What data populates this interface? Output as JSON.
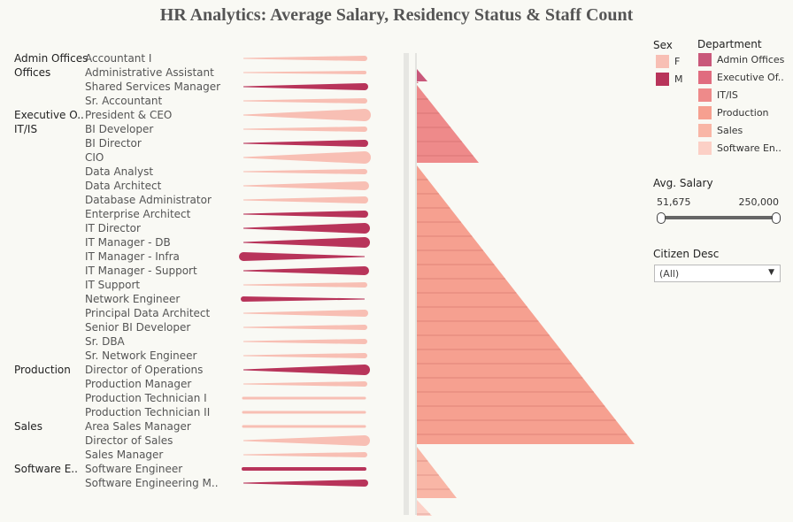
{
  "title": "HR Analytics: Average Salary, Residency Status & Staff Count",
  "legend_sex": {
    "title": "Sex",
    "items": [
      {
        "label": "F",
        "color": "#f8bfb4"
      },
      {
        "label": "M",
        "color": "#b8345a"
      }
    ]
  },
  "legend_department": {
    "title": "Department",
    "items": [
      {
        "label": "Admin Offices",
        "color": "#c9587a"
      },
      {
        "label": "Executive Of..",
        "color": "#e06c7f"
      },
      {
        "label": "IT/IS",
        "color": "#ee8a8a"
      },
      {
        "label": "Production",
        "color": "#f6a090"
      },
      {
        "label": "Sales",
        "color": "#f9b6a6"
      },
      {
        "label": "Software En..",
        "color": "#fcd0c6"
      }
    ]
  },
  "salary_filter": {
    "title": "Avg. Salary",
    "min_label": "51,675",
    "max_label": "250,000"
  },
  "citizen_filter": {
    "title": "Citizen Desc",
    "value": "(All)"
  },
  "chart_data": {
    "type": "bar",
    "description_of_panels": [
      "salary shape per position by sex",
      "staff count per department (triangle bars)"
    ],
    "rows": [
      {
        "dept": "Admin Offices",
        "job": "Accountant I",
        "sex": "F",
        "size": 3
      },
      {
        "dept": "Offices",
        "job": "Administrative Assistant",
        "sex": "F",
        "size": 2
      },
      {
        "dept": "",
        "job": "Shared Services Manager",
        "sex": "M",
        "size": 4
      },
      {
        "dept": "",
        "job": "Sr. Accountant",
        "sex": "F",
        "size": 3
      },
      {
        "dept": "Executive O..",
        "job": "President & CEO",
        "sex": "F",
        "size": 7
      },
      {
        "dept": "IT/IS",
        "job": "BI Developer",
        "sex": "F",
        "size": 3
      },
      {
        "dept": "",
        "job": "BI Director",
        "sex": "M",
        "size": 4
      },
      {
        "dept": "",
        "job": "CIO",
        "sex": "F",
        "size": 7
      },
      {
        "dept": "",
        "job": "Data Analyst",
        "sex": "F",
        "size": 3
      },
      {
        "dept": "",
        "job": "Data Architect",
        "sex": "F",
        "size": 5
      },
      {
        "dept": "",
        "job": "Database Administrator",
        "sex": "F",
        "size": 4
      },
      {
        "dept": "",
        "job": "Enterprise Architect",
        "sex": "M",
        "size": 4
      },
      {
        "dept": "",
        "job": "IT Director",
        "sex": "M",
        "size": 6
      },
      {
        "dept": "",
        "job": "IT Manager - DB",
        "sex": "M",
        "size": 6
      },
      {
        "dept": "",
        "job": "IT Manager - Infra",
        "sex": "M",
        "size": 5,
        "reverse": true
      },
      {
        "dept": "",
        "job": "IT Manager - Support",
        "sex": "M",
        "size": 5
      },
      {
        "dept": "",
        "job": "IT Support",
        "sex": "F",
        "size": 3
      },
      {
        "dept": "",
        "job": "Network Engineer",
        "sex": "M",
        "size": 3,
        "reverse": true
      },
      {
        "dept": "",
        "job": "Principal Data Architect",
        "sex": "F",
        "size": 4
      },
      {
        "dept": "",
        "job": "Senior BI Developer",
        "sex": "F",
        "size": 3
      },
      {
        "dept": "",
        "job": "Sr. DBA",
        "sex": "F",
        "size": 3
      },
      {
        "dept": "",
        "job": "Sr. Network Engineer",
        "sex": "F",
        "size": 3
      },
      {
        "dept": "Production",
        "job": "Director of Operations",
        "sex": "M",
        "size": 6
      },
      {
        "dept": "",
        "job": "Production Manager",
        "sex": "F",
        "size": 3
      },
      {
        "dept": "",
        "job": "Production Technician I",
        "sex": "F",
        "size": 3,
        "flat": true
      },
      {
        "dept": "",
        "job": "Production Technician II",
        "sex": "F",
        "size": 3,
        "flat": true
      },
      {
        "dept": "Sales",
        "job": "Area Sales Manager",
        "sex": "F",
        "size": 3,
        "flat": true
      },
      {
        "dept": "",
        "job": "Director of Sales",
        "sex": "F",
        "size": 6
      },
      {
        "dept": "",
        "job": "Sales Manager",
        "sex": "F",
        "size": 3
      },
      {
        "dept": "Software E..",
        "job": "Software Engineer",
        "sex": "M",
        "size": 4,
        "flat": true
      },
      {
        "dept": "",
        "job": "Software Engineering M..",
        "sex": "M",
        "size": 4
      }
    ],
    "staff_triangles": [
      {
        "dept": "Admin Offices",
        "count": 9,
        "color": "#c9587a"
      },
      {
        "dept": "Executive Office",
        "count": 1,
        "color": "#e06c7f"
      },
      {
        "dept": "IT/IS",
        "count": 50,
        "color": "#ee8a8a"
      },
      {
        "dept": "Production",
        "count": 209,
        "color": "#f6a090"
      },
      {
        "dept": "Sales",
        "count": 31,
        "color": "#f9b6a6"
      },
      {
        "dept": "Software Engineering",
        "count": 11,
        "color": "#fcd0c6"
      }
    ]
  }
}
